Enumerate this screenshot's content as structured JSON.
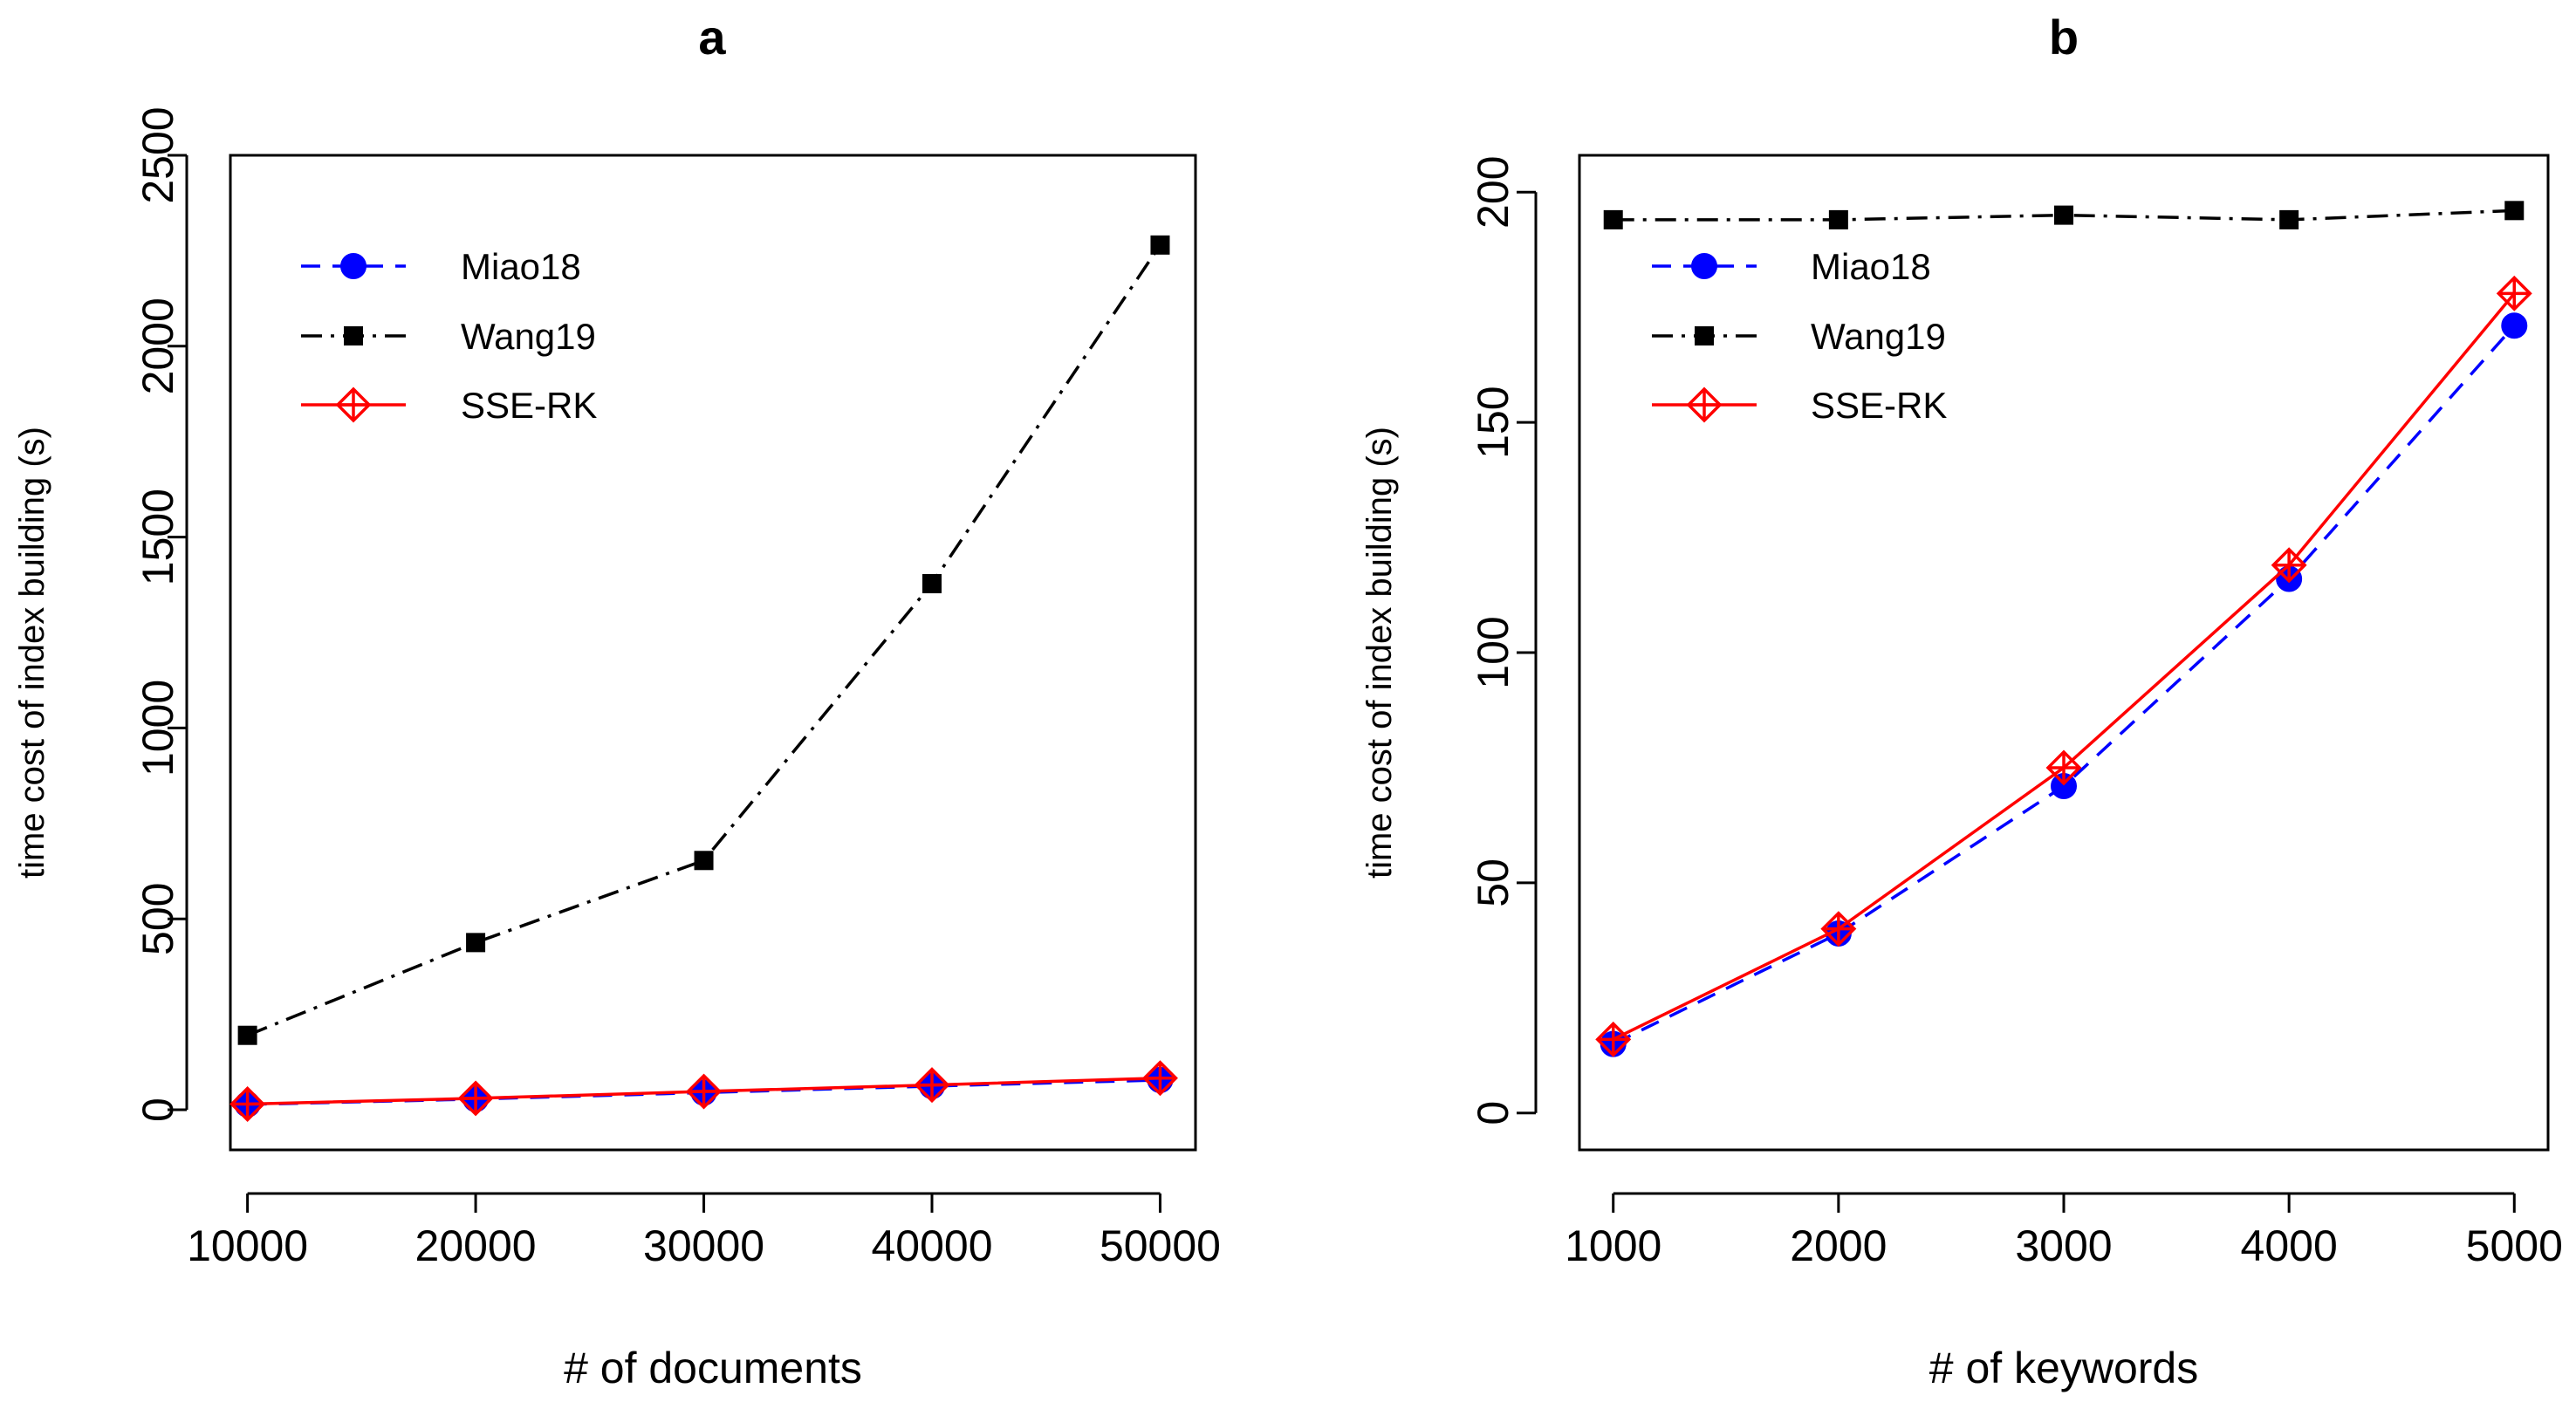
{
  "chart_data": [
    {
      "type": "line",
      "panel": "a",
      "title": "a",
      "xlabel": "# of documents",
      "ylabel": "time cost of index building (s)",
      "x": [
        10000,
        20000,
        30000,
        40000,
        50000
      ],
      "x_tick_labels": [
        "10000",
        "20000",
        "30000",
        "40000",
        "50000"
      ],
      "xlim": [
        9250,
        51550
      ],
      "ylim": [
        -105,
        2500
      ],
      "y_ticks": [
        0,
        500,
        1000,
        1500,
        2000,
        2500
      ],
      "y_tick_labels": [
        "0",
        "500",
        "1000",
        "1500",
        "2000",
        "2500"
      ],
      "grid": false,
      "legend_position": "top-left",
      "series": [
        {
          "name": "Miao18",
          "color": "#0000FF",
          "line": "dashed",
          "marker": "filled-circle",
          "values": [
            14,
            28,
            45,
            62,
            78
          ]
        },
        {
          "name": "Wang19",
          "color": "#000000",
          "line": "dashdot",
          "marker": "filled-square",
          "values": [
            195,
            438,
            653,
            1378,
            2265
          ]
        },
        {
          "name": "SSE-RK",
          "color": "#FF0000",
          "line": "solid",
          "marker": "diamond-plus",
          "values": [
            15,
            30,
            48,
            65,
            83
          ]
        }
      ]
    },
    {
      "type": "line",
      "panel": "b",
      "title": "b",
      "xlabel": "# of keywords",
      "ylabel": "time cost of index building (s)",
      "x": [
        1000,
        2000,
        3000,
        4000,
        5000
      ],
      "x_tick_labels": [
        "1000",
        "2000",
        "3000",
        "4000",
        "5000"
      ],
      "xlim": [
        850,
        5150
      ],
      "ylim": [
        -8,
        208
      ],
      "y_ticks": [
        0,
        50,
        100,
        150,
        200
      ],
      "y_tick_labels": [
        "0",
        "50",
        "100",
        "150",
        "200"
      ],
      "grid": false,
      "legend_position": "top-left",
      "series": [
        {
          "name": "Miao18",
          "color": "#0000FF",
          "line": "dashed",
          "marker": "filled-circle",
          "values": [
            15,
            39,
            71,
            116,
            171
          ]
        },
        {
          "name": "Wang19",
          "color": "#000000",
          "line": "dashdot",
          "marker": "filled-square",
          "values": [
            194,
            194,
            195,
            194,
            196
          ]
        },
        {
          "name": "SSE-RK",
          "color": "#FF0000",
          "line": "solid",
          "marker": "diamond-plus",
          "values": [
            16,
            40,
            75,
            119,
            178
          ]
        }
      ]
    }
  ]
}
